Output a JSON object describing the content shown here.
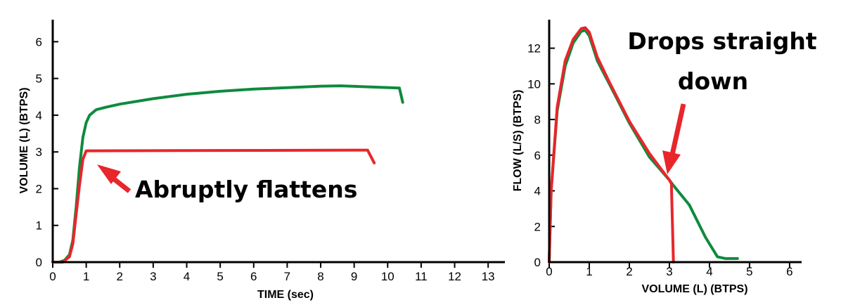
{
  "chart_data": [
    {
      "type": "line",
      "xlabel": "TIME (sec)",
      "ylabel": "VOLUME (L) (BTPS)",
      "xlim": [
        0,
        13.5
      ],
      "ylim": [
        0,
        6.6
      ],
      "xticks": [
        0,
        1,
        2,
        3,
        4,
        5,
        6,
        7,
        8,
        9,
        10,
        11,
        12,
        13
      ],
      "yticks": [
        0,
        1,
        2,
        3,
        4,
        5,
        6
      ],
      "grid": false,
      "colors": [
        "#0f8a3e",
        "#e8262b"
      ],
      "series": [
        {
          "x": [
            0,
            0.2,
            0.35,
            0.5,
            0.6,
            0.7,
            0.8,
            0.9,
            1.0,
            1.1,
            1.3,
            1.6,
            2.0,
            3.0,
            4.0,
            5.0,
            6.0,
            7.0,
            8.0,
            8.6,
            9.5,
            10.35,
            10.45
          ],
          "y": [
            0,
            0,
            0.05,
            0.2,
            0.6,
            1.5,
            2.6,
            3.4,
            3.8,
            4.0,
            4.15,
            4.22,
            4.3,
            4.45,
            4.57,
            4.65,
            4.71,
            4.75,
            4.79,
            4.8,
            4.77,
            4.74,
            4.35
          ]
        },
        {
          "x": [
            0,
            0.3,
            0.5,
            0.6,
            0.7,
            0.8,
            0.9,
            1.0,
            9.4,
            9.6
          ],
          "y": [
            0,
            0,
            0.15,
            0.5,
            1.3,
            2.1,
            2.8,
            3.03,
            3.05,
            2.7
          ]
        }
      ],
      "annotations": [
        {
          "text": "Abruptly flattens"
        }
      ]
    },
    {
      "type": "line",
      "xlabel": "VOLUME (L) (BTPS)",
      "ylabel": "FLOW (L/S) (BTPS)",
      "xlim": [
        0,
        6.3
      ],
      "ylim": [
        0,
        13.6
      ],
      "xticks": [
        0,
        1,
        2,
        3,
        4,
        5,
        6
      ],
      "yticks": [
        0,
        2,
        4,
        6,
        8,
        10,
        12
      ],
      "grid": false,
      "colors": [
        "#0f8a3e",
        "#e8262b"
      ],
      "series": [
        {
          "x": [
            0,
            0.05,
            0.2,
            0.4,
            0.6,
            0.8,
            0.9,
            1.0,
            1.2,
            1.5,
            2.0,
            2.5,
            3.0,
            3.1,
            3.5,
            3.9,
            4.2,
            4.4,
            4.7
          ],
          "y": [
            0,
            4.0,
            8.5,
            11.0,
            12.3,
            12.95,
            13.0,
            12.7,
            11.3,
            10.0,
            7.8,
            5.9,
            4.6,
            4.3,
            3.2,
            1.4,
            0.3,
            0.2,
            0.2
          ]
        },
        {
          "x": [
            0,
            0.05,
            0.2,
            0.4,
            0.6,
            0.8,
            0.9,
            1.0,
            1.2,
            1.5,
            2.0,
            2.5,
            3.0,
            3.05,
            3.1
          ],
          "y": [
            0,
            4.0,
            8.7,
            11.3,
            12.5,
            13.1,
            13.15,
            12.9,
            11.5,
            10.1,
            7.9,
            6.1,
            4.6,
            4.4,
            0
          ]
        }
      ],
      "annotations": [
        {
          "text": "Drops straight down"
        }
      ]
    }
  ],
  "annotations": {
    "left": "Abruptly flattens",
    "right_line1": "Drops straight",
    "right_line2": "down"
  }
}
